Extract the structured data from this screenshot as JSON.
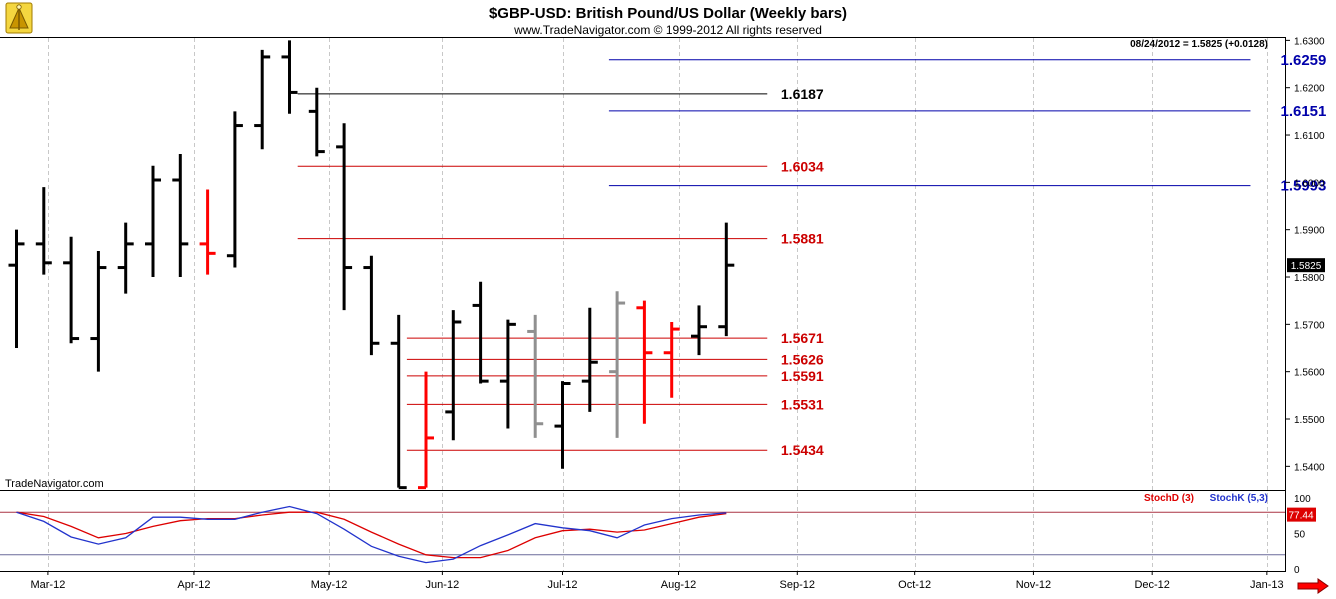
{
  "header": {
    "title": "$GBP-USD:  British Pound/US Dollar  (Weekly bars)",
    "copyright": "www.TradeNavigator.com © 1999-2012 All rights reserved",
    "last_quote": "08/24/2012 = 1.5825 (+0.0128)"
  },
  "watermark": "TradeNavigator.com",
  "colors": {
    "up_bar": "#000000",
    "down_bar": "#ff0000",
    "neutral_bar": "#909090",
    "resistance_line": "#0000aa",
    "support_line": "#cc0000",
    "stoch_d": "#dd0000",
    "stoch_k": "#2233cc",
    "grid": "#c8c8c8",
    "price_tag_bg": "#000000",
    "stoch_tag_bg": "#dd0000",
    "scroll_arrow": "#ff0000"
  },
  "icons": {
    "logo": "trade-navigator-logo-icon",
    "scroll": "scroll-right-arrow-icon"
  },
  "chart_data": [
    {
      "type": "bar",
      "subtype": "ohlc",
      "title": "$GBP-USD:  British Pound/US Dollar  (Weekly bars)",
      "ylim": [
        1.535,
        1.6305
      ],
      "y_ticks": [
        1.54,
        1.55,
        1.56,
        1.57,
        1.58,
        1.59,
        1.6,
        1.61,
        1.62,
        1.63
      ],
      "y_tick_labels": [
        "1.5400",
        "1.5500",
        "1.5600",
        "1.5700",
        "1.5800",
        "1.5900",
        "1.6000",
        "1.6100",
        "1.6200",
        "1.6300"
      ],
      "x_labels": [
        "Mar-12",
        "Apr-12",
        "May-12",
        "Jun-12",
        "Jul-12",
        "Aug-12",
        "Sep-12",
        "Oct-12",
        "Nov-12",
        "Dec-12",
        "Jan-13"
      ],
      "x_label_weeks": [
        1.15,
        6.5,
        11.45,
        15.6,
        20,
        24.25,
        28.6,
        32.9,
        37.25,
        41.6,
        45.8
      ],
      "bars": [
        {
          "week": 0,
          "open": 1.5825,
          "high": 1.59,
          "low": 1.565,
          "close": 1.587,
          "color": "up"
        },
        {
          "week": 1,
          "open": 1.587,
          "high": 1.599,
          "low": 1.5805,
          "close": 1.583,
          "color": "up"
        },
        {
          "week": 2,
          "open": 1.583,
          "high": 1.5885,
          "low": 1.566,
          "close": 1.567,
          "color": "up"
        },
        {
          "week": 3,
          "open": 1.567,
          "high": 1.5855,
          "low": 1.56,
          "close": 1.582,
          "color": "up"
        },
        {
          "week": 4,
          "open": 1.582,
          "high": 1.5915,
          "low": 1.5765,
          "close": 1.587,
          "color": "up"
        },
        {
          "week": 5,
          "open": 1.587,
          "high": 1.6035,
          "low": 1.58,
          "close": 1.6005,
          "color": "up"
        },
        {
          "week": 6,
          "open": 1.6005,
          "high": 1.606,
          "low": 1.58,
          "close": 1.587,
          "color": "up"
        },
        {
          "week": 7,
          "open": 1.587,
          "high": 1.5985,
          "low": 1.5805,
          "close": 1.585,
          "color": "down"
        },
        {
          "week": 8,
          "open": 1.5845,
          "high": 1.615,
          "low": 1.582,
          "close": 1.612,
          "color": "up"
        },
        {
          "week": 9,
          "open": 1.612,
          "high": 1.628,
          "low": 1.607,
          "close": 1.6265,
          "color": "up"
        },
        {
          "week": 10,
          "open": 1.6265,
          "high": 1.63,
          "low": 1.6145,
          "close": 1.619,
          "color": "up"
        },
        {
          "week": 11,
          "open": 1.615,
          "high": 1.62,
          "low": 1.6055,
          "close": 1.6065,
          "color": "up"
        },
        {
          "week": 12,
          "open": 1.6075,
          "high": 1.6125,
          "low": 1.573,
          "close": 1.582,
          "color": "up"
        },
        {
          "week": 13,
          "open": 1.582,
          "high": 1.5845,
          "low": 1.5635,
          "close": 1.566,
          "color": "up"
        },
        {
          "week": 14,
          "open": 1.566,
          "high": 1.572,
          "low": 1.5355,
          "close": 1.5355,
          "color": "up"
        },
        {
          "week": 15,
          "open": 1.5355,
          "high": 1.56,
          "low": 1.5355,
          "close": 1.546,
          "color": "down"
        },
        {
          "week": 16,
          "open": 1.5515,
          "high": 1.573,
          "low": 1.5455,
          "close": 1.5705,
          "color": "up"
        },
        {
          "week": 17,
          "open": 1.574,
          "high": 1.579,
          "low": 1.5575,
          "close": 1.558,
          "color": "up"
        },
        {
          "week": 18,
          "open": 1.558,
          "high": 1.571,
          "low": 1.548,
          "close": 1.57,
          "color": "up"
        },
        {
          "week": 19,
          "open": 1.5685,
          "high": 1.572,
          "low": 1.546,
          "close": 1.549,
          "color": "neutral"
        },
        {
          "week": 20,
          "open": 1.5485,
          "high": 1.558,
          "low": 1.5395,
          "close": 1.5575,
          "color": "up"
        },
        {
          "week": 21,
          "open": 1.558,
          "high": 1.5735,
          "low": 1.5515,
          "close": 1.562,
          "color": "up"
        },
        {
          "week": 22,
          "open": 1.56,
          "high": 1.577,
          "low": 1.546,
          "close": 1.5745,
          "color": "neutral"
        },
        {
          "week": 23,
          "open": 1.5735,
          "high": 1.575,
          "low": 1.549,
          "close": 1.564,
          "color": "down"
        },
        {
          "week": 24,
          "open": 1.564,
          "high": 1.5705,
          "low": 1.5545,
          "close": 1.569,
          "color": "down"
        },
        {
          "week": 25,
          "open": 1.5675,
          "high": 1.574,
          "low": 1.5635,
          "close": 1.5695,
          "color": "up"
        },
        {
          "week": 26,
          "open": 1.5695,
          "high": 1.5915,
          "low": 1.5675,
          "close": 1.5825,
          "color": "up"
        }
      ],
      "levels": [
        {
          "value": 1.6259,
          "label": "1.6259",
          "kind": "resistance",
          "from_week": 21.7,
          "to_week": 45.2,
          "label_week": 46.3
        },
        {
          "value": 1.6187,
          "label": "1.6187",
          "kind": "pivot",
          "from_week": 10.3,
          "to_week": 27.5,
          "label_week": 28
        },
        {
          "value": 1.6151,
          "label": "1.6151",
          "kind": "resistance",
          "from_week": 21.7,
          "to_week": 45.2,
          "label_week": 46.3
        },
        {
          "value": 1.6034,
          "label": "1.6034",
          "kind": "support",
          "from_week": 10.3,
          "to_week": 27.5,
          "label_week": 28
        },
        {
          "value": 1.5993,
          "label": "1.5993",
          "kind": "resistance",
          "from_week": 21.7,
          "to_week": 45.2,
          "label_week": 46.3
        },
        {
          "value": 1.5881,
          "label": "1.5881",
          "kind": "support",
          "from_week": 10.3,
          "to_week": 27.5,
          "label_week": 28
        },
        {
          "value": 1.5671,
          "label": "1.5671",
          "kind": "support",
          "from_week": 14.3,
          "to_week": 27.5,
          "label_week": 28
        },
        {
          "value": 1.5626,
          "label": "1.5626",
          "kind": "support",
          "from_week": 14.3,
          "to_week": 27.5,
          "label_week": 28
        },
        {
          "value": 1.5591,
          "label": "1.5591",
          "kind": "support",
          "from_week": 14.3,
          "to_week": 27.5,
          "label_week": 28
        },
        {
          "value": 1.5531,
          "label": "1.5531",
          "kind": "support",
          "from_week": 14.3,
          "to_week": 27.5,
          "label_week": 28
        },
        {
          "value": 1.5434,
          "label": "1.5434",
          "kind": "support",
          "from_week": 14.3,
          "to_week": 27.5,
          "label_week": 28
        }
      ],
      "last_price_tag": "1.5825",
      "last_price": 1.5825
    },
    {
      "type": "line",
      "ylim": [
        0,
        100
      ],
      "y_ticks": [
        0,
        50,
        100
      ],
      "y_tick_labels": [
        "0",
        "50",
        "100"
      ],
      "hlines": [
        80,
        20
      ],
      "x": [
        0,
        1,
        2,
        3,
        4,
        5,
        6,
        7,
        8,
        9,
        10,
        11,
        12,
        13,
        14,
        15,
        16,
        17,
        18,
        19,
        20,
        21,
        22,
        23,
        24,
        25,
        26
      ],
      "series": [
        {
          "name": "StochD (3)",
          "color": "stoch_d",
          "values": [
            80,
            74,
            60,
            44,
            50,
            60,
            68,
            71,
            71,
            76,
            80,
            80,
            70,
            52,
            35,
            20,
            16,
            16,
            26,
            44,
            54,
            56,
            52,
            55,
            64,
            73,
            78
          ]
        },
        {
          "name": "StochK (5,3)",
          "color": "stoch_k",
          "values": [
            80,
            67,
            45,
            35,
            44,
            73,
            73,
            70,
            70,
            80,
            88,
            78,
            56,
            32,
            18,
            9,
            14,
            33,
            48,
            64,
            58,
            54,
            44,
            62,
            71,
            76,
            79
          ]
        }
      ],
      "legend": [
        "StochD (3)",
        "StochK (5,3)"
      ],
      "legend_position": "top-right",
      "last_value_tag": "77.44"
    }
  ]
}
